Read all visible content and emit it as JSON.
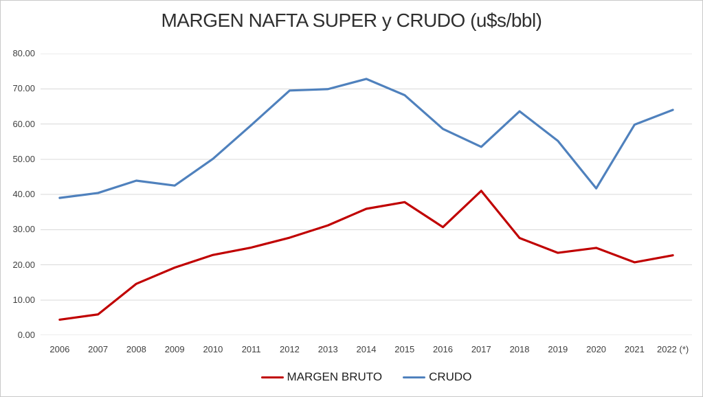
{
  "chart_data": {
    "type": "line",
    "title": "MARGEN NAFTA SUPER y CRUDO (u$s/bbl)",
    "categories": [
      "2006",
      "2007",
      "2008",
      "2009",
      "2010",
      "2011",
      "2012",
      "2013",
      "2014",
      "2015",
      "2016",
      "2017",
      "2018",
      "2019",
      "2020",
      "2021",
      "2022 (*)"
    ],
    "series": [
      {
        "name": "MARGEN BRUTO",
        "color": "#C00000",
        "values": [
          4.4,
          5.9,
          14.6,
          19.2,
          22.8,
          24.9,
          27.7,
          31.2,
          35.9,
          37.8,
          30.7,
          41.0,
          27.6,
          23.4,
          24.8,
          20.7,
          22.7
        ]
      },
      {
        "name": "CRUDO",
        "color": "#4F81BD",
        "values": [
          39.0,
          40.4,
          43.9,
          42.5,
          50.1,
          59.7,
          69.5,
          69.9,
          72.8,
          68.2,
          58.6,
          53.5,
          63.6,
          55.2,
          41.7,
          59.8,
          64.0
        ]
      }
    ],
    "xlabel": "",
    "ylabel": "",
    "ylim": [
      0,
      80
    ],
    "y_tick_step": 10,
    "y_tick_labels": [
      "0.00",
      "10.00",
      "20.00",
      "30.00",
      "40.00",
      "50.00",
      "60.00",
      "70.00",
      "80.00"
    ],
    "grid": "horizontal",
    "gridline_color": "#D9D9D9",
    "axis_label_color": "#3f3f3f",
    "title_color": "#2f2f2f",
    "legend_position": "bottom",
    "line_width": 3.2
  }
}
